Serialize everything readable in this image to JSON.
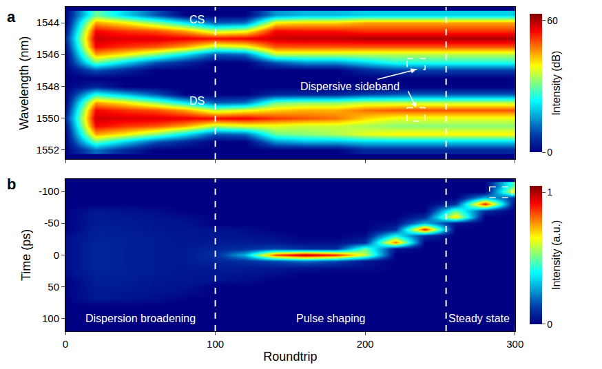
{
  "chart_data": [
    {
      "type": "heatmap",
      "panel_label": "a",
      "y_title": "Wavelength (nm)",
      "color": "jet",
      "tick_labels": "y",
      "x": [
        0,
        20,
        40,
        60,
        80,
        100,
        120,
        140,
        160,
        180,
        200,
        220,
        240,
        260,
        280,
        300
      ],
      "y": [
        1543.5,
        1544,
        1544.5,
        1545,
        1545.5,
        1546,
        1546.5,
        1547,
        1547.5,
        1548,
        1548.5,
        1549,
        1549.5,
        1550,
        1550.5,
        1551,
        1551.5,
        1552
      ],
      "xlim": [
        0,
        300
      ],
      "xticks": [
        0,
        100,
        200,
        300
      ],
      "ylim": [
        1552.6,
        1543
      ],
      "yticks": [
        1544,
        1546,
        1548,
        1550,
        1552
      ],
      "phase_boundaries": [
        100,
        254
      ],
      "labels": [
        "CS",
        "DS",
        "Dispersive sideband"
      ],
      "colorbar": {
        "title": "Intensity (dB)",
        "range": [
          0,
          63
        ],
        "ticks": [
          0,
          60
        ]
      },
      "cells_by_roundtrip": [
        [
          0,
          0,
          2,
          5,
          2,
          0,
          0,
          0,
          0,
          0,
          0,
          0,
          2,
          5,
          2,
          0,
          0,
          0
        ],
        [
          30,
          45,
          55,
          58,
          55,
          45,
          30,
          10,
          0,
          5,
          25,
          45,
          55,
          58,
          55,
          45,
          30,
          12
        ],
        [
          20,
          40,
          52,
          57,
          52,
          40,
          20,
          5,
          0,
          0,
          18,
          40,
          52,
          57,
          52,
          40,
          20,
          5
        ],
        [
          10,
          32,
          50,
          57,
          50,
          32,
          10,
          0,
          0,
          0,
          10,
          32,
          50,
          57,
          50,
          32,
          10,
          0
        ],
        [
          0,
          22,
          45,
          56,
          45,
          22,
          5,
          0,
          0,
          0,
          0,
          22,
          45,
          56,
          45,
          22,
          5,
          0
        ],
        [
          0,
          10,
          35,
          55,
          35,
          10,
          0,
          0,
          0,
          0,
          0,
          10,
          35,
          55,
          35,
          10,
          0,
          0
        ],
        [
          0,
          12,
          38,
          56,
          38,
          12,
          0,
          0,
          0,
          0,
          0,
          12,
          38,
          56,
          38,
          12,
          0,
          0
        ],
        [
          15,
          40,
          55,
          58,
          50,
          35,
          10,
          0,
          0,
          0,
          5,
          30,
          42,
          52,
          38,
          30,
          15,
          0
        ],
        [
          18,
          42,
          54,
          59,
          50,
          35,
          15,
          0,
          0,
          0,
          5,
          32,
          44,
          50,
          36,
          32,
          18,
          0
        ],
        [
          18,
          42,
          54,
          59,
          50,
          35,
          15,
          0,
          0,
          0,
          5,
          32,
          44,
          48,
          36,
          34,
          18,
          0
        ],
        [
          20,
          45,
          52,
          60,
          50,
          35,
          20,
          5,
          0,
          0,
          8,
          35,
          48,
          42,
          34,
          38,
          20,
          5
        ],
        [
          20,
          45,
          52,
          60,
          50,
          35,
          25,
          8,
          0,
          0,
          10,
          35,
          50,
          38,
          32,
          40,
          20,
          5
        ],
        [
          20,
          45,
          52,
          60,
          50,
          35,
          25,
          8,
          0,
          0,
          10,
          35,
          50,
          38,
          32,
          40,
          20,
          5
        ],
        [
          20,
          45,
          52,
          60,
          50,
          35,
          25,
          8,
          0,
          0,
          10,
          35,
          50,
          38,
          32,
          40,
          20,
          5
        ],
        [
          20,
          45,
          52,
          60,
          50,
          35,
          25,
          8,
          0,
          0,
          10,
          35,
          50,
          38,
          32,
          40,
          20,
          5
        ],
        [
          20,
          45,
          52,
          60,
          50,
          35,
          25,
          8,
          0,
          0,
          10,
          35,
          50,
          38,
          32,
          40,
          20,
          5
        ]
      ]
    },
    {
      "type": "heatmap",
      "panel_label": "b",
      "x_title": "Roundtrip",
      "y_title": "Time (ps)",
      "color": "jet",
      "x": [
        0,
        20,
        40,
        60,
        80,
        100,
        120,
        140,
        160,
        180,
        200,
        220,
        240,
        260,
        280,
        300
      ],
      "y": [
        -110,
        -100,
        -90,
        -80,
        -70,
        -60,
        -50,
        -40,
        -30,
        -20,
        -10,
        0,
        10,
        20,
        30,
        40,
        50,
        60,
        70,
        80,
        90,
        100,
        110
      ],
      "xlim": [
        0,
        300
      ],
      "xticks": [
        0,
        100,
        200,
        300
      ],
      "ylim": [
        120,
        -120
      ],
      "yticks": [
        -100,
        -50,
        0,
        50,
        100
      ],
      "phase_boundaries": [
        100,
        254
      ],
      "labels": [
        "Dispersion broadening",
        "Pulse shaping",
        "Steady state"
      ],
      "colorbar": {
        "title": "Intensity (a.u.)",
        "range": [
          0,
          1.05
        ],
        "ticks": [
          0,
          1
        ]
      },
      "cells_by_roundtrip": [
        [
          0,
          0,
          0,
          0,
          0,
          0,
          0,
          0,
          0.03,
          0.03,
          0.03,
          0.03,
          0.03,
          0.03,
          0.03,
          0,
          0,
          0,
          0,
          0,
          0,
          0,
          0
        ],
        [
          0,
          0,
          0,
          0,
          0.05,
          0.06,
          0.06,
          0.07,
          0.07,
          0.08,
          0.08,
          0.08,
          0.08,
          0.08,
          0.07,
          0.07,
          0.06,
          0.06,
          0.05,
          0,
          0,
          0,
          0
        ],
        [
          0,
          0,
          0,
          0,
          0.04,
          0.05,
          0.06,
          0.06,
          0.07,
          0.07,
          0.07,
          0.07,
          0.07,
          0.07,
          0.07,
          0.06,
          0.06,
          0.05,
          0.04,
          0,
          0,
          0,
          0
        ],
        [
          0,
          0,
          0,
          0,
          0.03,
          0.04,
          0.05,
          0.05,
          0.06,
          0.06,
          0.06,
          0.06,
          0.06,
          0.06,
          0.06,
          0.05,
          0.05,
          0.04,
          0.03,
          0,
          0,
          0,
          0
        ],
        [
          0,
          0,
          0,
          0,
          0,
          0.03,
          0.04,
          0.05,
          0.05,
          0.05,
          0.06,
          0.06,
          0.06,
          0.05,
          0.05,
          0.05,
          0.04,
          0.03,
          0,
          0,
          0,
          0,
          0
        ],
        [
          0,
          0,
          0,
          0,
          0,
          0,
          0,
          0.04,
          0.05,
          0.06,
          0.08,
          0.1,
          0.08,
          0.06,
          0.05,
          0.04,
          0,
          0,
          0,
          0,
          0,
          0,
          0
        ],
        [
          0,
          0,
          0,
          0,
          0,
          0,
          0,
          0.03,
          0.04,
          0.06,
          0.1,
          0.3,
          0.1,
          0.06,
          0.04,
          0.03,
          0,
          0,
          0,
          0,
          0,
          0,
          0
        ],
        [
          0,
          0,
          0,
          0,
          0,
          0,
          0,
          0,
          0.03,
          0.05,
          0.15,
          0.85,
          0.15,
          0.05,
          0.03,
          0,
          0,
          0,
          0,
          0,
          0,
          0,
          0
        ],
        [
          0,
          0,
          0,
          0,
          0,
          0,
          0,
          0,
          0,
          0.03,
          0.1,
          1,
          0.2,
          0.04,
          0,
          0,
          0,
          0,
          0,
          0,
          0,
          0,
          0
        ],
        [
          0,
          0,
          0,
          0,
          0,
          0,
          0,
          0,
          0,
          0.03,
          0.1,
          0.9,
          0.15,
          0.03,
          0,
          0,
          0,
          0,
          0,
          0,
          0,
          0,
          0
        ],
        [
          0,
          0,
          0,
          0,
          0,
          0,
          0,
          0,
          0.03,
          0.1,
          0.5,
          0.6,
          0.05,
          0.03,
          0,
          0,
          0,
          0,
          0,
          0,
          0,
          0,
          0
        ],
        [
          0,
          0,
          0,
          0,
          0,
          0,
          0.03,
          0.1,
          0.4,
          0.8,
          0.05,
          0,
          0,
          0,
          0,
          0,
          0,
          0,
          0,
          0,
          0,
          0,
          0
        ],
        [
          0,
          0,
          0,
          0,
          0,
          0.1,
          0.3,
          0.9,
          0.1,
          0,
          0,
          0,
          0,
          0,
          0,
          0,
          0,
          0,
          0,
          0,
          0,
          0,
          0
        ],
        [
          0,
          0,
          0,
          0.1,
          0.5,
          0.7,
          0.05,
          0,
          0,
          0,
          0,
          0,
          0,
          0,
          0,
          0,
          0,
          0,
          0,
          0,
          0,
          0,
          0
        ],
        [
          0,
          0,
          0.3,
          0.9,
          0.1,
          0,
          0,
          0,
          0,
          0,
          0,
          0,
          0,
          0,
          0,
          0,
          0,
          0,
          0,
          0,
          0,
          0,
          0
        ],
        [
          0.5,
          0.7,
          0.1,
          0,
          0,
          0,
          0,
          0,
          0,
          0,
          0,
          0,
          0,
          0,
          0,
          0,
          0,
          0,
          0,
          0,
          0,
          0,
          0
        ]
      ]
    }
  ]
}
